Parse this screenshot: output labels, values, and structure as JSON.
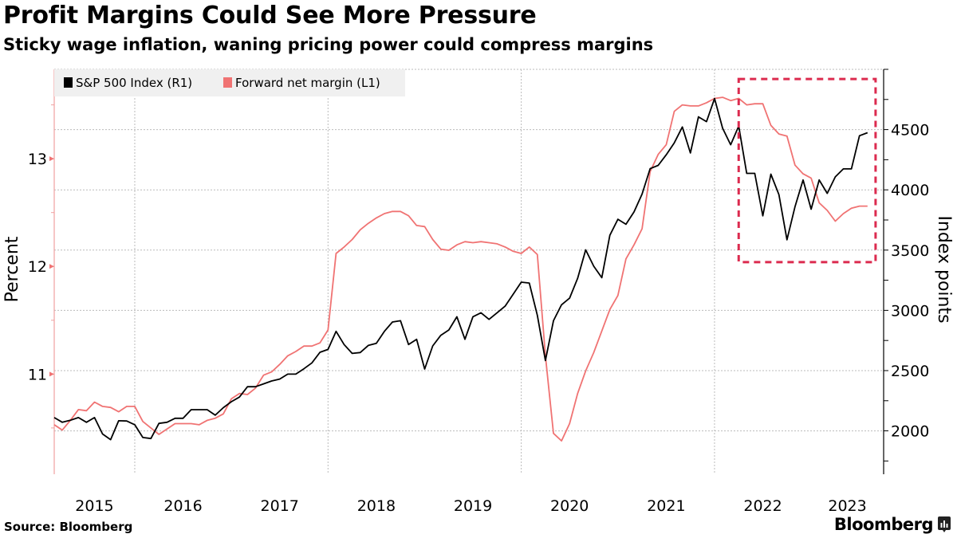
{
  "title": "Profit Margins Could See More Pressure",
  "subtitle": "Sticky wage inflation, waning pricing power could compress margins",
  "source": "Source: Bloomberg",
  "logo": "Bloomberg",
  "colors": {
    "sp500": "#000000",
    "margin": "#f07373",
    "highlight_box": "#dc2b4f",
    "left_axis": "#f0a0a0",
    "grid": "#bbbbbb",
    "legend_bg": "#f0f0f0"
  },
  "chart_data": {
    "type": "line",
    "title": "Profit Margins Could See More Pressure",
    "subtitle": "Sticky wage inflation, waning pricing power could compress margins",
    "xlim": [
      "2015-03",
      "2023-10"
    ],
    "x_ticks": [
      "2015",
      "2016",
      "2017",
      "2018",
      "2019",
      "2020",
      "2021",
      "2022",
      "2023"
    ],
    "grid": true,
    "legend_position": "top-left",
    "left_axis": {
      "label": "Percent",
      "range": [
        10.07,
        13.83
      ],
      "ticks": [
        "11",
        "12",
        "13"
      ],
      "tick_values": [
        11,
        12,
        13
      ],
      "minor_step": 0.5
    },
    "right_axis": {
      "label": "Index points",
      "range": [
        1640,
        5000
      ],
      "ticks": [
        "2000",
        "2500",
        "3000",
        "3500",
        "4000",
        "4500"
      ],
      "tick_values": [
        2000,
        2500,
        3000,
        3500,
        4000,
        4500
      ],
      "minor_step": 250
    },
    "x": [
      "2015-03",
      "2015-04",
      "2015-05",
      "2015-06",
      "2015-07",
      "2015-08",
      "2015-09",
      "2015-10",
      "2015-11",
      "2015-12",
      "2016-01",
      "2016-02",
      "2016-03",
      "2016-04",
      "2016-05",
      "2016-06",
      "2016-07",
      "2016-08",
      "2016-09",
      "2016-10",
      "2016-11",
      "2016-12",
      "2017-01",
      "2017-02",
      "2017-03",
      "2017-04",
      "2017-05",
      "2017-06",
      "2017-07",
      "2017-08",
      "2017-09",
      "2017-10",
      "2017-11",
      "2017-12",
      "2018-01",
      "2018-02",
      "2018-03",
      "2018-04",
      "2018-05",
      "2018-06",
      "2018-07",
      "2018-08",
      "2018-09",
      "2018-10",
      "2018-11",
      "2018-12",
      "2019-01",
      "2019-02",
      "2019-03",
      "2019-04",
      "2019-05",
      "2019-06",
      "2019-07",
      "2019-08",
      "2019-09",
      "2019-10",
      "2019-11",
      "2019-12",
      "2020-01",
      "2020-02",
      "2020-03",
      "2020-04",
      "2020-05",
      "2020-06",
      "2020-07",
      "2020-08",
      "2020-09",
      "2020-10",
      "2020-11",
      "2020-12",
      "2021-01",
      "2021-02",
      "2021-03",
      "2021-04",
      "2021-05",
      "2021-06",
      "2021-07",
      "2021-08",
      "2021-09",
      "2021-10",
      "2021-11",
      "2021-12",
      "2022-01",
      "2022-02",
      "2022-03",
      "2022-04",
      "2022-05",
      "2022-06",
      "2022-07",
      "2022-08",
      "2022-09",
      "2022-10",
      "2022-11",
      "2022-12",
      "2023-01",
      "2023-02",
      "2023-03",
      "2023-04",
      "2023-05",
      "2023-06",
      "2023-07",
      "2023-08"
    ],
    "series": [
      {
        "name": "S&P 500 Index (R1)",
        "axis": "right",
        "color": "#000000",
        "values": [
          2110,
          2071,
          2088,
          2110,
          2071,
          2110,
          1974,
          1927,
          2084,
          2082,
          2051,
          1945,
          1936,
          2062,
          2071,
          2104,
          2104,
          2176,
          2176,
          2176,
          2130,
          2192,
          2242,
          2280,
          2366,
          2366,
          2390,
          2414,
          2430,
          2471,
          2471,
          2515,
          2564,
          2652,
          2676,
          2826,
          2716,
          2643,
          2650,
          2709,
          2727,
          2826,
          2903,
          2914,
          2716,
          2760,
          2513,
          2705,
          2793,
          2837,
          2947,
          2760,
          2947,
          2980,
          2925,
          2980,
          3035,
          3134,
          3234,
          3227,
          2958,
          2584,
          2914,
          3046,
          3101,
          3266,
          3502,
          3366,
          3271,
          3623,
          3756,
          3714,
          3817,
          3965,
          4176,
          4203,
          4291,
          4390,
          4522,
          4306,
          4606,
          4566,
          4758,
          4511,
          4374,
          4529,
          4137,
          4137,
          3784,
          4130,
          3960,
          3586,
          3861,
          4082,
          3839,
          4082,
          3971,
          4108,
          4174,
          4174,
          4449,
          4474
        ]
      },
      {
        "name": "Forward net margin (L1)",
        "axis": "left",
        "color": "#f07373",
        "values": [
          10.53,
          10.48,
          10.57,
          10.67,
          10.66,
          10.74,
          10.7,
          10.69,
          10.65,
          10.7,
          10.7,
          10.56,
          10.5,
          10.44,
          10.49,
          10.54,
          10.54,
          10.54,
          10.53,
          10.57,
          10.59,
          10.63,
          10.77,
          10.82,
          10.81,
          10.87,
          10.99,
          11.02,
          11.09,
          11.17,
          11.21,
          11.26,
          11.26,
          11.29,
          11.41,
          12.12,
          12.18,
          12.25,
          12.34,
          12.4,
          12.45,
          12.49,
          12.51,
          12.51,
          12.47,
          12.38,
          12.37,
          12.25,
          12.16,
          12.15,
          12.2,
          12.23,
          12.22,
          12.23,
          12.22,
          12.21,
          12.18,
          12.14,
          12.12,
          12.18,
          12.11,
          11.17,
          10.45,
          10.38,
          10.54,
          10.82,
          11.03,
          11.2,
          11.4,
          11.6,
          11.73,
          12.07,
          12.2,
          12.35,
          12.88,
          13.04,
          13.13,
          13.44,
          13.5,
          13.49,
          13.49,
          13.52,
          13.56,
          13.57,
          13.54,
          13.56,
          13.5,
          13.51,
          13.51,
          13.31,
          13.23,
          13.21,
          12.94,
          12.86,
          12.82,
          12.59,
          12.52,
          12.42,
          12.49,
          12.54,
          12.56,
          12.56
        ]
      }
    ],
    "annotations": [
      {
        "type": "dashed-box",
        "axis": "right",
        "x": [
          "2022-04",
          "2023-09"
        ],
        "y": [
          3400,
          4920
        ],
        "color": "#dc2b4f"
      }
    ]
  }
}
